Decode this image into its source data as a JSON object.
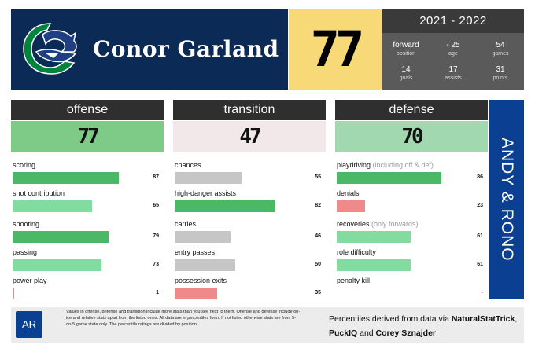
{
  "header": {
    "player_name": "Conor Garland",
    "overall": "77",
    "season": "2021 - 2022",
    "stats": [
      {
        "value": "forward",
        "label": "position"
      },
      {
        "value": "- 25",
        "label": "age"
      },
      {
        "value": "54",
        "label": "games"
      },
      {
        "value": "14",
        "label": "goals"
      },
      {
        "value": "17",
        "label": "assists"
      },
      {
        "value": "31",
        "label": "points"
      }
    ],
    "logo_icon": "canucks-orca-logo-icon"
  },
  "columns": [
    {
      "title": "offense",
      "score": "77",
      "score_bg": "#7ecb88",
      "metrics": [
        {
          "label": "scoring",
          "note": "",
          "value": "87",
          "percentile": 87,
          "color": "#4bb866"
        },
        {
          "label": "shot contribution",
          "note": "",
          "value": "65",
          "percentile": 65,
          "color": "#82dca0"
        },
        {
          "label": "shooting",
          "note": "",
          "value": "79",
          "percentile": 79,
          "color": "#4bb866"
        },
        {
          "label": "passing",
          "note": "",
          "value": "73",
          "percentile": 73,
          "color": "#82dca0"
        },
        {
          "label": "power play",
          "note": "",
          "value": "1",
          "percentile": 1,
          "color": "#f08a8a"
        }
      ]
    },
    {
      "title": "transition",
      "score": "47",
      "score_bg": "#f2e8ea",
      "metrics": [
        {
          "label": "chances",
          "note": "",
          "value": "55",
          "percentile": 55,
          "color": "#c6c6c6"
        },
        {
          "label": "high-danger assists",
          "note": "",
          "value": "82",
          "percentile": 82,
          "color": "#4bb866"
        },
        {
          "label": "carries",
          "note": "",
          "value": "46",
          "percentile": 46,
          "color": "#c6c6c6"
        },
        {
          "label": "entry passes",
          "note": "",
          "value": "50",
          "percentile": 50,
          "color": "#c6c6c6"
        },
        {
          "label": "possession exits",
          "note": "",
          "value": "35",
          "percentile": 35,
          "color": "#f08a8a"
        }
      ]
    },
    {
      "title": "defense",
      "score": "70",
      "score_bg": "#a2d8b0",
      "metrics": [
        {
          "label": "playdriving",
          "note": " (including off & def)",
          "value": "86",
          "percentile": 86,
          "color": "#4bb866"
        },
        {
          "label": "denials",
          "note": "",
          "value": "23",
          "percentile": 23,
          "color": "#f08a8a"
        },
        {
          "label": "recoveries",
          "note": " (only forwards)",
          "value": "61",
          "percentile": 61,
          "color": "#82dca0"
        },
        {
          "label": "role difficulty",
          "note": "",
          "value": "61",
          "percentile": 61,
          "color": "#82dca0"
        },
        {
          "label": "penalty kill",
          "note": "",
          "value": "-",
          "percentile": 0,
          "color": "#ffffff"
        }
      ]
    }
  ],
  "side_banner": "ANDY & RONO",
  "footer": {
    "ar_logo": "AR",
    "footnote": "Values in offense, defense and transition include more stats than you see next to them. Offense and defense include on-ice and relative stats apart from the listed ones. All data are in percentiles form. If not listed otherwise stats are from 5-on-5 game state only. The percentile ratings are divided by position.",
    "credits_prefix": "Percentiles derived from data via ",
    "credits_nst": "NaturalStatTrick",
    "credits_sep": ",",
    "credits_puckiq": "PuckIQ",
    "credits_and": " and ",
    "credits_sznajder": "Corey Sznajder",
    "credits_end": "."
  }
}
